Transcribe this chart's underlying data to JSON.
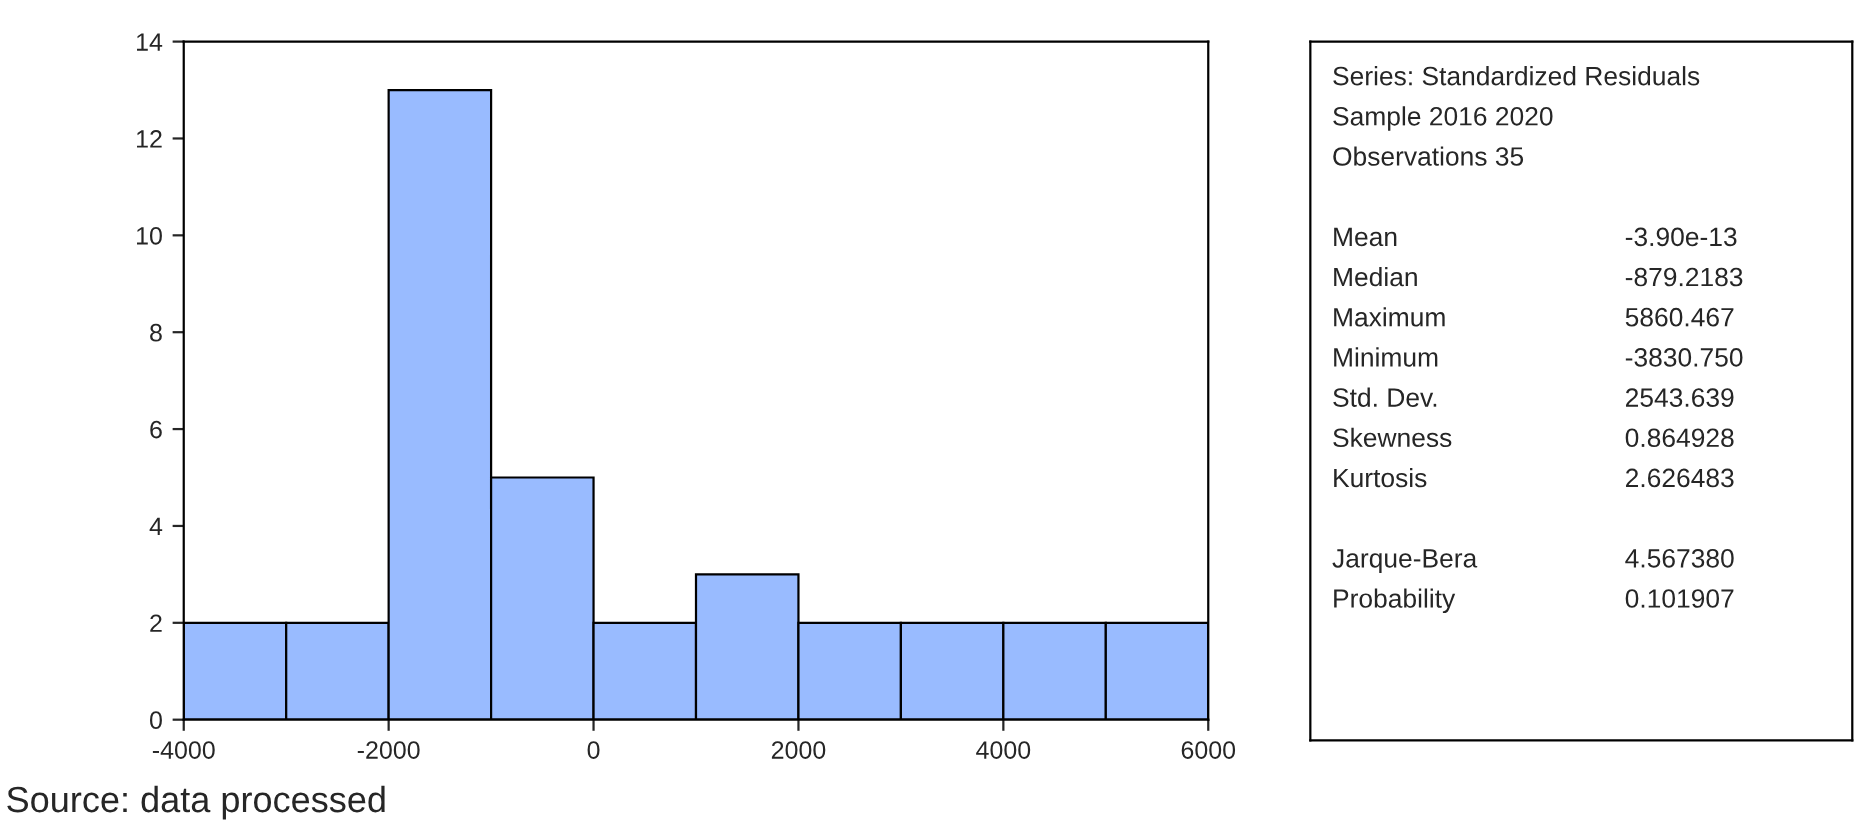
{
  "chart_data": [
    {
      "type": "histogram",
      "bins": [
        -4000,
        -3000,
        -2000,
        -1000,
        0,
        1000,
        2000,
        3000,
        4000,
        5000,
        6000
      ],
      "values": [
        2,
        2,
        13,
        5,
        2,
        3,
        2,
        2,
        2,
        2
      ],
      "color": "#99bbff",
      "xlim": [
        -4000,
        6000
      ],
      "xticks": [
        -4000,
        -2000,
        0,
        2000,
        4000,
        6000
      ],
      "ylim": [
        0,
        14
      ],
      "yticks": [
        0,
        2,
        4,
        6,
        8,
        10,
        12,
        14
      ],
      "grid": false,
      "annotations": [
        "Source: data processed"
      ]
    },
    {
      "type": "other",
      "annotations": [
        "Series: Standardized Residuals",
        "Sample 2016 2020",
        "Observations 35"
      ],
      "categories": [
        "Mean",
        "Median",
        "Maximum",
        "Minimum",
        "Std. Dev.",
        "Skewness",
        "Kurtosis",
        null,
        "Jarque-Bera",
        "Probability"
      ],
      "values": [
        -3.9e-13,
        -879.2183,
        5860.467,
        -3830.75,
        2543.639,
        0.864928,
        2.626483,
        null,
        4.56738,
        0.101907
      ],
      "value_labels": [
        "-3.90e-13",
        "-879.2183",
        "5860.467",
        "-3830.750",
        "2543.639",
        "0.864928",
        "2.626483",
        null,
        "4.567380",
        "0.101907"
      ]
    }
  ]
}
